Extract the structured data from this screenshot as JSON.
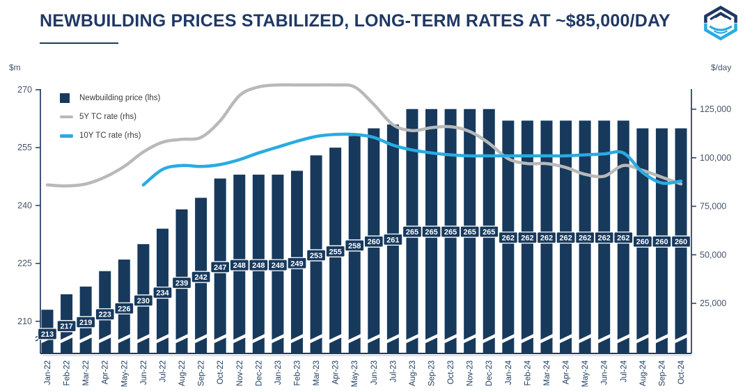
{
  "header": {
    "title": "NEWBUILDING PRICES STABILIZED, LONG-TERM RATES AT ~$85,000/DAY",
    "logo": "hexagon-shield-logo"
  },
  "chart_data": {
    "type": "combo-bar-line",
    "title": "NEWBUILDING PRICES STABILIZED, LONG-TERM RATES AT ~$85,000/DAY",
    "grid": false,
    "legend_position": "top-left",
    "categories": [
      "Jan-22",
      "Feb-22",
      "Mar-22",
      "Apr-22",
      "May-22",
      "Jun-22",
      "Jul-22",
      "Aug-22",
      "Sep-22",
      "Oct-22",
      "Nov-22",
      "Dec-22",
      "Jan-23",
      "Feb-23",
      "Mar-23",
      "Apr-23",
      "May-23",
      "Jun-23",
      "Jul-23",
      "Aug-23",
      "Sep-23",
      "Oct-23",
      "Nov-23",
      "Dec-23",
      "Jan-24",
      "Feb-24",
      "Mar-24",
      "Apr-24",
      "May-24",
      "Jun-24",
      "Jul-24",
      "Aug-24",
      "Sep-24",
      "Oct-24"
    ],
    "series": [
      {
        "name": "Newbuilding price (lhs)",
        "type": "bar",
        "axis": "left",
        "color": "#17395C",
        "data_labels": true,
        "values": [
          213,
          217,
          219,
          223,
          226,
          230,
          234,
          239,
          242,
          247,
          248,
          248,
          248,
          249,
          253,
          255,
          258,
          260,
          261,
          265,
          265,
          265,
          265,
          265,
          262,
          262,
          262,
          262,
          262,
          262,
          262,
          260,
          260,
          260
        ]
      },
      {
        "name": "5Y TC rate (rhs)",
        "type": "line",
        "axis": "right",
        "color": "#B9B9B9",
        "values": [
          86000,
          85500,
          86500,
          90000,
          95500,
          103000,
          108000,
          109500,
          110500,
          119000,
          132000,
          136500,
          137500,
          137500,
          137500,
          137500,
          136500,
          127500,
          117000,
          114000,
          115500,
          116000,
          113500,
          107500,
          99500,
          97000,
          97000,
          95000,
          91500,
          90500,
          96000,
          93500,
          90000,
          86500
        ]
      },
      {
        "name": "10Y TC rate (rhs)",
        "type": "line",
        "axis": "right",
        "color": "#29ABE2",
        "values": [
          null,
          null,
          null,
          null,
          null,
          86000,
          94000,
          96000,
          95500,
          96500,
          99000,
          102500,
          105500,
          108500,
          111000,
          112000,
          112000,
          110500,
          106500,
          104000,
          102500,
          101500,
          101000,
          101000,
          101000,
          101000,
          101000,
          101000,
          101500,
          102000,
          102500,
          92500,
          87000,
          88000
        ]
      }
    ],
    "left_axis": {
      "label": "$m",
      "ticks": [
        270,
        255,
        240,
        225,
        210
      ],
      "max": 270,
      "axis_break": true
    },
    "right_axis": {
      "label": "$/day",
      "ticks": [
        125000,
        100000,
        75000,
        50000,
        25000
      ]
    }
  }
}
